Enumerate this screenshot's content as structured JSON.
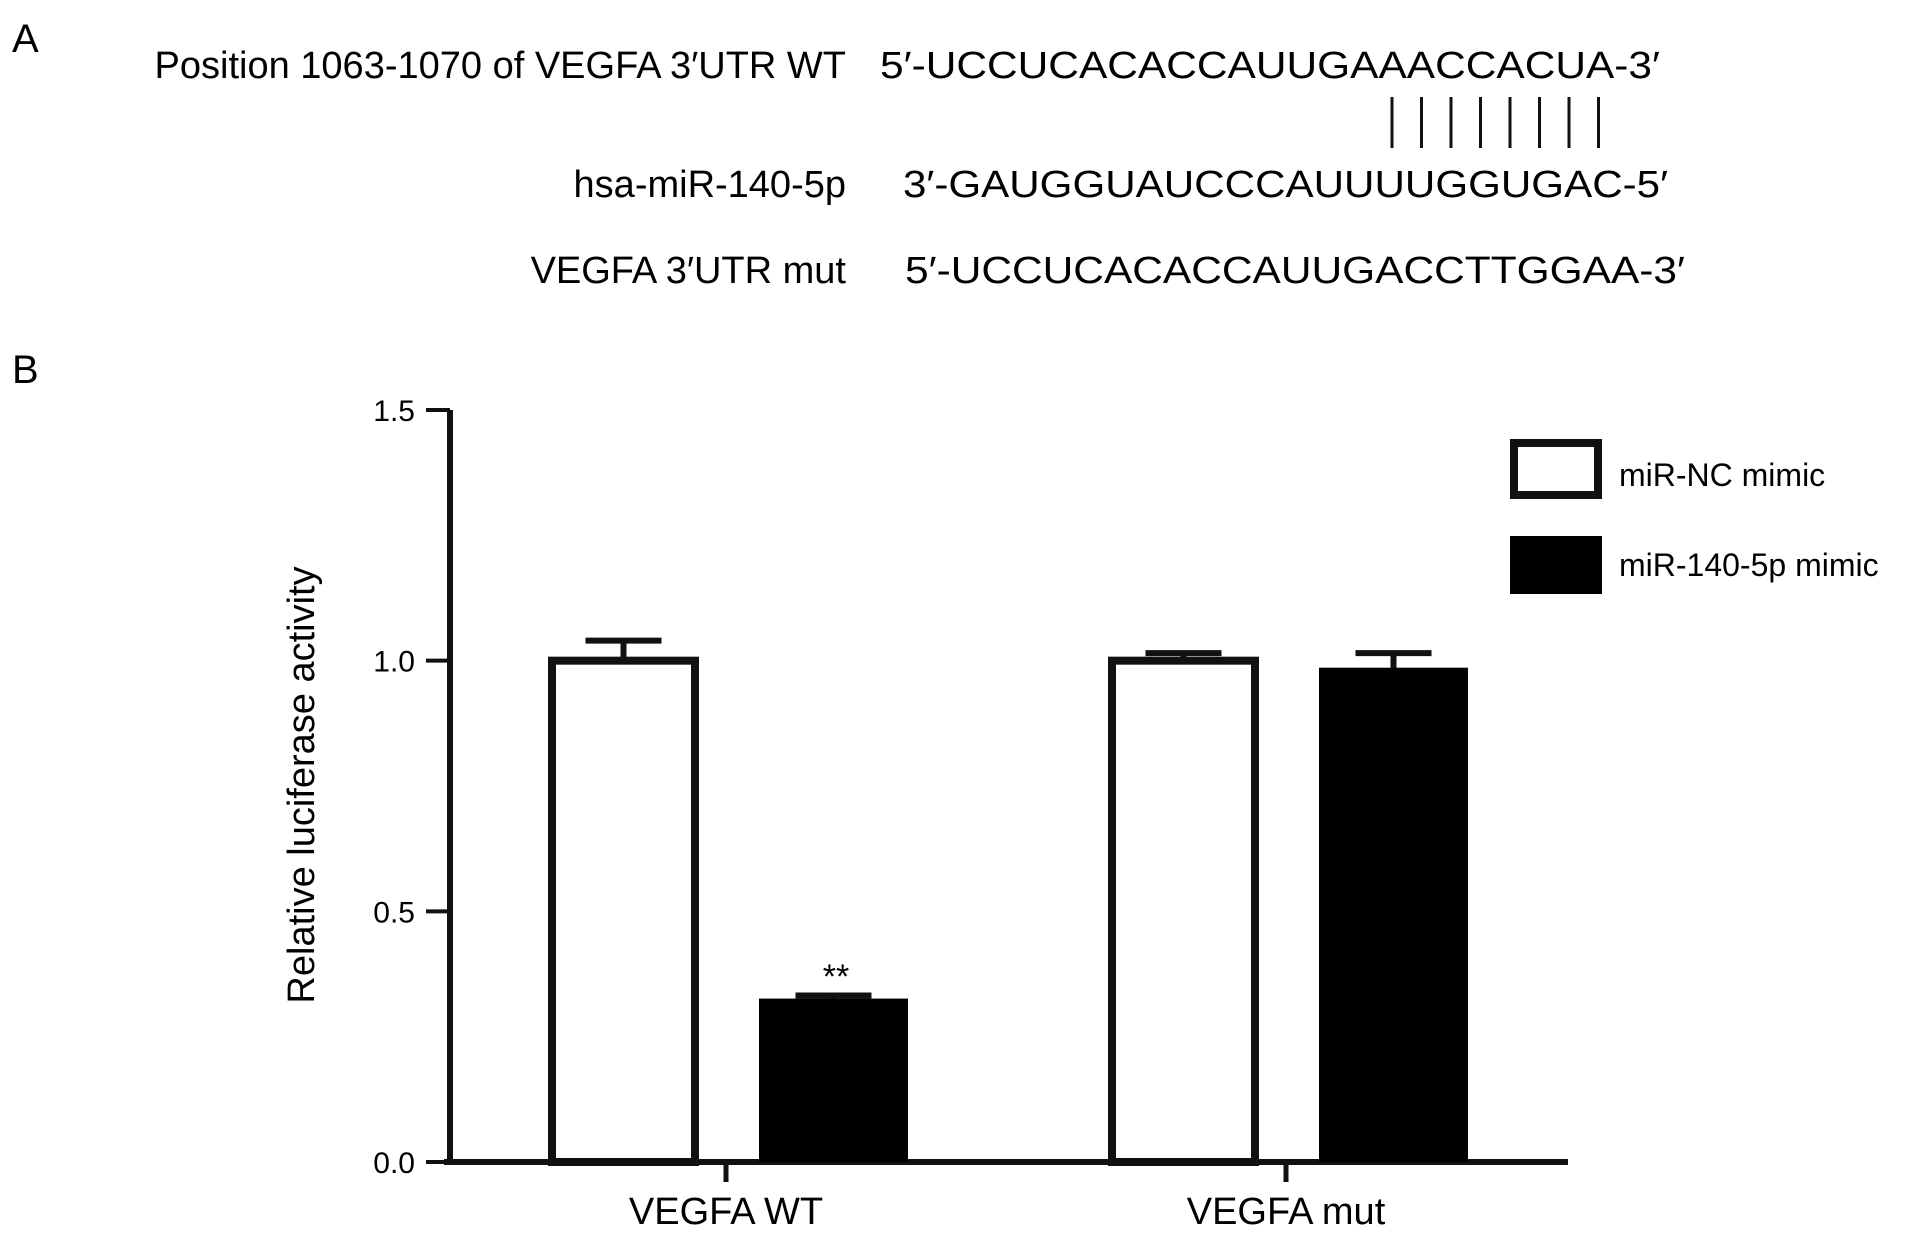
{
  "panel_a": {
    "label": "A",
    "rows": [
      {
        "name": "Position 1063-1070 of VEGFA 3′UTR WT",
        "sequence": "5′-UCCUCACACCAUUGAAACCACUA-3′"
      },
      {
        "name": "hsa-miR-140-5p",
        "sequence": "3′-GAUGGUAUCCCAUUUUGGUGAC-5′"
      },
      {
        "name": "VEGFA 3′UTR mut",
        "sequence": "5′-UCCUCACACCAUUGACCTTGGAA-3′"
      }
    ],
    "pairing_lines": 8
  },
  "panel_b": {
    "label": "B",
    "significance": "**"
  },
  "chart_data": {
    "type": "bar",
    "title": "",
    "xlabel": "",
    "ylabel": "Relative luciferase activity",
    "ylim": [
      0,
      1.5
    ],
    "yticks": [
      "0.0",
      "0.5",
      "1.0",
      "1.5"
    ],
    "categories": [
      "VEGFA WT",
      "VEGFA mut"
    ],
    "series": [
      {
        "name": "miR-NC mimic",
        "values": [
          1.0,
          1.0
        ],
        "errors": [
          0.04,
          0.015
        ],
        "fill": "#ffffff",
        "stroke": "#000000"
      },
      {
        "name": "miR-140-5p mimic",
        "values": [
          0.32,
          0.98
        ],
        "errors": [
          0.012,
          0.035
        ],
        "fill": "#000000",
        "stroke": "#000000"
      }
    ],
    "legend_position": "top-right",
    "grid": false
  }
}
